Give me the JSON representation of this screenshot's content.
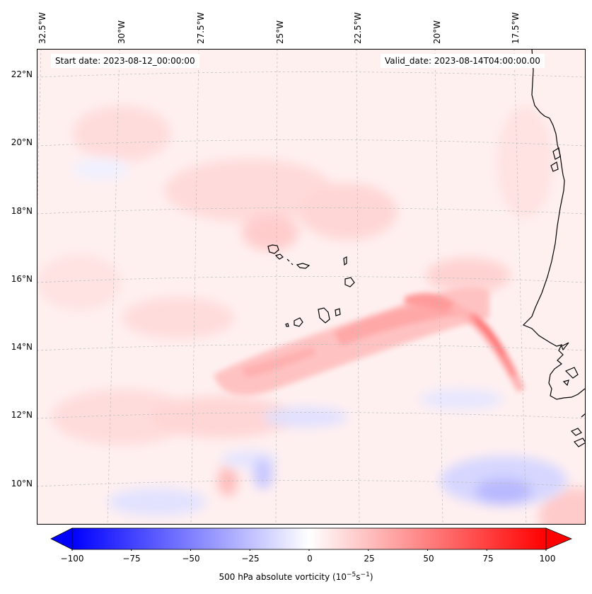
{
  "map": {
    "start_label": "Start date: 2023-08-12_00:00:00",
    "valid_label": "Valid_date: 2023-08-14T04:00:00.00",
    "lon_labels": [
      "32.5°W",
      "30°W",
      "27.5°W",
      "25°W",
      "22.5°W",
      "20°W",
      "17.5°W"
    ],
    "lat_labels": [
      "22°N",
      "20°N",
      "18°N",
      "16°N",
      "14°N",
      "12°N",
      "10°N"
    ],
    "extent": {
      "lon_west": -32.6,
      "lon_east": -15.2,
      "lat_south": 8.9,
      "lat_north": 22.8
    }
  },
  "colorbar": {
    "ticks": [
      "−100",
      "−75",
      "−50",
      "−25",
      "0",
      "25",
      "50",
      "75",
      "100"
    ],
    "tick_values": [
      -100,
      -75,
      -50,
      -25,
      0,
      25,
      50,
      75,
      100
    ],
    "label_prefix": "500 hPa absolute vorticity (10",
    "label_exp1": "−5",
    "label_mid": "s",
    "label_exp2": "−1",
    "label_suffix": ")",
    "min": -100,
    "max": 100,
    "low_color": "#0000ff",
    "mid_color": "#ffffff",
    "high_color": "#ff0000"
  },
  "colors": {
    "coastline": "#000000",
    "gridline": "#bbbbbb",
    "positive": "#ff0000",
    "negative": "#0000ff"
  }
}
